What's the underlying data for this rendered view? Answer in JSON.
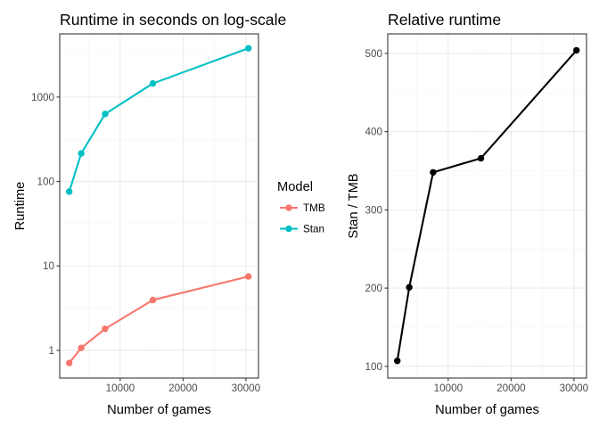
{
  "chart_data": [
    {
      "type": "line",
      "title": "Runtime in seconds on log-scale",
      "xlabel": "Number of games",
      "ylabel": "Runtime",
      "x_scale": "linear",
      "y_scale": "log10",
      "xlim": [
        380,
        32000
      ],
      "ylim": [
        0.47,
        5600
      ],
      "x_ticks": [
        10000,
        20000,
        30000
      ],
      "x_tick_labels": [
        "10000",
        "20000",
        "30000"
      ],
      "y_ticks": [
        1,
        10,
        100,
        1000
      ],
      "y_tick_labels": [
        "1",
        "10",
        "100",
        "1000"
      ],
      "grid": true,
      "legend": {
        "title": "Model",
        "position": "right",
        "entries": [
          {
            "name": "TMB",
            "color": "#F8766D"
          },
          {
            "name": "Stan",
            "color": "#00BFC4"
          }
        ]
      },
      "series": [
        {
          "name": "TMB",
          "color": "#F8766D",
          "x": [
            1900,
            3800,
            7600,
            15200,
            30400
          ],
          "values": [
            0.71,
            1.07,
            1.8,
            3.95,
            7.5
          ]
        },
        {
          "name": "Stan",
          "color": "#00BFC4",
          "x": [
            1900,
            3800,
            7600,
            15200,
            30400
          ],
          "values": [
            76,
            215,
            630,
            1450,
            3780
          ]
        }
      ]
    },
    {
      "type": "line",
      "title": "Relative runtime",
      "xlabel": "Number of games",
      "ylabel": "Stan / TMB",
      "x_scale": "linear",
      "y_scale": "linear",
      "xlim": [
        380,
        32000
      ],
      "ylim": [
        85,
        525
      ],
      "x_ticks": [
        10000,
        20000,
        30000
      ],
      "x_tick_labels": [
        "10000",
        "20000",
        "30000"
      ],
      "y_ticks": [
        100,
        200,
        300,
        400,
        500
      ],
      "y_tick_labels": [
        "100",
        "200",
        "300",
        "400",
        "500"
      ],
      "grid": true,
      "series": [
        {
          "color": "#000000",
          "x": [
            1900,
            3800,
            7600,
            15200,
            30400
          ],
          "values": [
            107,
            201,
            348,
            366,
            504
          ]
        }
      ]
    }
  ]
}
